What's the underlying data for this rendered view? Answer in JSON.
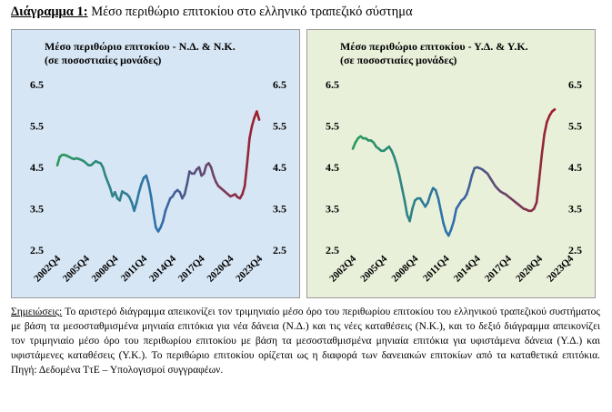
{
  "heading": {
    "label": "Διάγραμμα 1:",
    "text": "Μέσο περιθώριο επιτοκίου στο ελληνικό τραπεζικό σύστημα"
  },
  "notes": {
    "label": "Σημειώσεις:",
    "text": "Το αριστερό διάγραμμα απεικονίζει τον τριμηνιαίο μέσο όρο του περιθωρίου επιτοκίου του ελληνικού τραπεζικού συστήματος με βάση τα μεσοσταθμισμένα μηνιαία επιτόκια για νέα δάνεια (Ν.Δ.) και τις νέες καταθέσεις (Ν.Κ.), και το δεξιό διάγραμμα απεικονίζει τον τριμηνιαίο μέσο όρο του περιθωρίου επιτοκίου με βάση τα μεσοσταθμισμένα μηνιαία επιτόκια για υφιστάμενα δάνεια (Υ.Δ.) και υφιστάμενες καταθέσεις (Υ.Κ.). Το περιθώριο επιτοκίου ορίζεται ως η διαφορά των δανειακών επιτοκίων από τα καταθετικά επιτόκια. Πηγή: Δεδομένα ΤτΕ – Υπολογισμοί συγγραφέων."
  },
  "colors": {
    "line_start": "#2b9a5a",
    "line_mid": "#2f6fae",
    "line_end": "#a01d2a",
    "left_bg": "#d7e6f4",
    "right_bg": "#e9f0da"
  },
  "chart_data": [
    {
      "type": "line",
      "title_line1": "Μέσο περιθώριο επιτοκίου - Ν.Δ. & Ν.Κ.",
      "title_line2": "(σε ποσοστιαίες μονάδες)",
      "ylim": [
        2.5,
        6.5
      ],
      "yticks": [
        "6.5",
        "5.5",
        "4.5",
        "3.5",
        "2.5"
      ],
      "xticks": [
        "2002Q4",
        "2005Q4",
        "2008Q4",
        "2011Q4",
        "2014Q4",
        "2017Q4",
        "2020Q4",
        "2023Q4"
      ],
      "x_start": "2002Q4",
      "values": [
        4.55,
        4.75,
        4.8,
        4.8,
        4.78,
        4.75,
        4.72,
        4.7,
        4.72,
        4.7,
        4.68,
        4.65,
        4.6,
        4.55,
        4.55,
        4.6,
        4.65,
        4.62,
        4.6,
        4.5,
        4.3,
        4.15,
        4.0,
        3.8,
        3.9,
        3.75,
        3.7,
        3.92,
        3.88,
        3.85,
        3.78,
        3.65,
        3.45,
        3.65,
        3.9,
        4.1,
        4.25,
        4.3,
        4.1,
        3.8,
        3.4,
        3.05,
        2.95,
        3.05,
        3.2,
        3.45,
        3.6,
        3.75,
        3.8,
        3.9,
        3.95,
        3.9,
        3.75,
        3.85,
        4.1,
        4.4,
        4.35,
        4.35,
        4.45,
        4.5,
        4.3,
        4.35,
        4.55,
        4.6,
        4.5,
        4.3,
        4.15,
        4.05,
        4.0,
        3.95,
        3.9,
        3.85,
        3.8,
        3.82,
        3.85,
        3.78,
        3.75,
        3.85,
        4.05,
        4.6,
        5.2,
        5.5,
        5.7,
        5.85,
        5.65
      ]
    },
    {
      "type": "line",
      "title_line1": "Μέσο περιθώριο επιτοκίου - Υ.Δ. & Υ.Κ.",
      "title_line2": "(σε ποσοστιαίες μονάδες)",
      "ylim": [
        2.5,
        6.5
      ],
      "yticks": [
        "6.5",
        "5.5",
        "4.5",
        "3.5",
        "2.5"
      ],
      "xticks": [
        "2002Q4",
        "2005Q4",
        "2008Q4",
        "2011Q4",
        "2014Q4",
        "2017Q4",
        "2020Q4",
        "2023Q4"
      ],
      "x_start": "2002Q4",
      "values": [
        4.95,
        5.1,
        5.2,
        5.25,
        5.2,
        5.2,
        5.15,
        5.15,
        5.1,
        5.0,
        4.95,
        4.9,
        4.9,
        4.95,
        5.0,
        4.9,
        4.75,
        4.55,
        4.3,
        4.0,
        3.7,
        3.35,
        3.2,
        3.5,
        3.7,
        3.75,
        3.75,
        3.65,
        3.55,
        3.65,
        3.85,
        4.0,
        3.95,
        3.75,
        3.45,
        3.15,
        2.95,
        2.85,
        3.0,
        3.2,
        3.5,
        3.6,
        3.7,
        3.75,
        3.85,
        4.05,
        4.3,
        4.48,
        4.5,
        4.48,
        4.45,
        4.4,
        4.35,
        4.25,
        4.15,
        4.05,
        3.98,
        3.92,
        3.88,
        3.85,
        3.8,
        3.75,
        3.7,
        3.65,
        3.6,
        3.55,
        3.5,
        3.48,
        3.45,
        3.45,
        3.5,
        3.65,
        4.2,
        4.8,
        5.3,
        5.6,
        5.75,
        5.85,
        5.9
      ]
    }
  ]
}
